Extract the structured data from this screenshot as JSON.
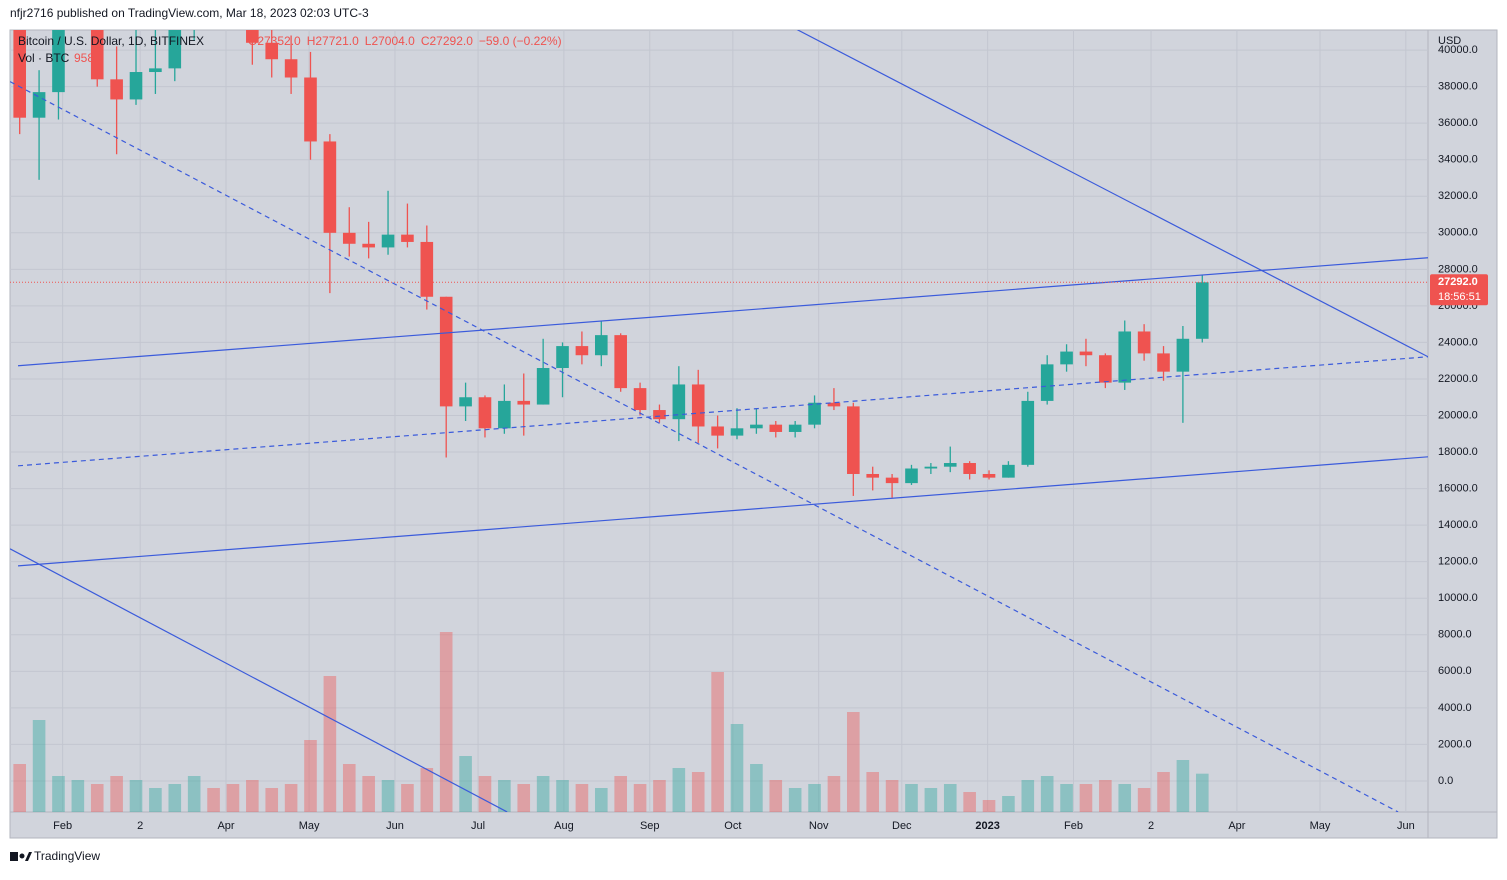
{
  "header": {
    "published": "nfjr2716 published on TradingView.com, Mar 18, 2023 02:03 UTC-3",
    "brand": "TradingView"
  },
  "chart_data": {
    "type": "candlestick",
    "title": "Bitcoin / U.S. Dollar, 1D, BITFINEX",
    "ohlc_header": [
      "O27352.0",
      "H27721.0",
      "L27004.0",
      "C27292.0",
      "−59.0 (−0.22%)"
    ],
    "volume_title": "Vol · BTC",
    "currency": "USD",
    "up_color": "#26a69a",
    "down_color": "#ef5350",
    "x": [
      0,
      7,
      14,
      21,
      28,
      35,
      42,
      49,
      56,
      63,
      70,
      77,
      84,
      91,
      98,
      105,
      112,
      119,
      126,
      133,
      140,
      147,
      154,
      161,
      168,
      175,
      182,
      189,
      196,
      203,
      210,
      217,
      224,
      231,
      238,
      245,
      252,
      259,
      266,
      273,
      280,
      287,
      294,
      301,
      308,
      315,
      322,
      329,
      336,
      343,
      350,
      357,
      364,
      371,
      378,
      385,
      392,
      399,
      406,
      413,
      420,
      427
    ],
    "open": [
      42000,
      36300,
      37700,
      41500,
      42200,
      38400,
      37300,
      38800,
      39000,
      41800,
      46800,
      45900,
      42200,
      40400,
      39500,
      38500,
      35000,
      30000,
      29400,
      29200,
      29900,
      29500,
      26500,
      20500,
      21000,
      19300,
      20800,
      20600,
      22600,
      23800,
      23300,
      24400,
      21500,
      20300,
      19800,
      21700,
      19400,
      18900,
      19300,
      19500,
      19100,
      19500,
      20700,
      20500,
      16800,
      16600,
      16300,
      17100,
      17200,
      17400,
      16800,
      16600,
      17300,
      20800,
      22800,
      23500,
      23300,
      21800,
      24600,
      23400,
      22400,
      24200
    ],
    "high": [
      43500,
      38900,
      41700,
      45800,
      44800,
      40200,
      45000,
      42500,
      42400,
      48200,
      47700,
      46400,
      42500,
      42900,
      40800,
      39900,
      35400,
      31400,
      30600,
      32300,
      31600,
      30400,
      26500,
      21800,
      21100,
      21700,
      22300,
      24200,
      24000,
      24600,
      25200,
      24500,
      21800,
      20600,
      22700,
      22500,
      20000,
      20400,
      20400,
      19700,
      19700,
      21100,
      21500,
      20700,
      17200,
      16800,
      17300,
      17400,
      18300,
      17500,
      17000,
      17500,
      21300,
      23300,
      23900,
      24200,
      23400,
      25200,
      25000,
      23800,
      24900,
      27700
    ],
    "low": [
      35400,
      32900,
      36200,
      41100,
      38000,
      34300,
      37000,
      37600,
      38300,
      40500,
      45200,
      42000,
      39200,
      38500,
      37600,
      34000,
      26700,
      28700,
      28600,
      28800,
      29200,
      25800,
      17700,
      19700,
      18800,
      19000,
      18900,
      20600,
      21000,
      22800,
      22700,
      21300,
      20000,
      19600,
      18600,
      18500,
      18200,
      18700,
      19000,
      18800,
      18800,
      19300,
      20300,
      15600,
      15900,
      15500,
      16200,
      16800,
      16900,
      16500,
      16500,
      16600,
      17200,
      20600,
      22400,
      22700,
      21500,
      21400,
      23000,
      21900,
      19600,
      24000
    ],
    "close": [
      36300,
      37700,
      41500,
      42200,
      38400,
      37300,
      38800,
      39000,
      41800,
      46800,
      45900,
      42200,
      40400,
      39500,
      38500,
      35000,
      30000,
      29400,
      29200,
      29900,
      29500,
      26500,
      20500,
      21000,
      19300,
      20800,
      20600,
      22600,
      23800,
      23300,
      24400,
      21500,
      20300,
      19800,
      21700,
      19400,
      18900,
      19300,
      19500,
      19100,
      19500,
      20700,
      20500,
      16800,
      16600,
      16300,
      17100,
      17200,
      17400,
      16800,
      16600,
      17300,
      20800,
      22800,
      23500,
      23300,
      21800,
      24600,
      23400,
      22400,
      24200,
      27292
    ],
    "volume": [
      1200,
      2300,
      900,
      800,
      700,
      900,
      800,
      600,
      700,
      900,
      600,
      700,
      800,
      600,
      700,
      1800,
      3400,
      1200,
      900,
      800,
      700,
      1100,
      4500,
      1400,
      900,
      800,
      700,
      900,
      800,
      700,
      600,
      900,
      700,
      800,
      1100,
      1000,
      3500,
      2200,
      1200,
      800,
      600,
      700,
      900,
      2500,
      1000,
      800,
      700,
      600,
      700,
      500,
      300,
      400,
      800,
      900,
      700,
      700,
      800,
      700,
      600,
      1000,
      1300,
      958
    ],
    "vlim": [
      0,
      5000
    ],
    "xlim": [
      0,
      512
    ],
    "xticks": [
      {
        "value": 19,
        "label": "Feb"
      },
      {
        "value": 47,
        "label": "2"
      },
      {
        "value": 78,
        "label": "Apr"
      },
      {
        "value": 108,
        "label": "May"
      },
      {
        "value": 139,
        "label": "Jun"
      },
      {
        "value": 169,
        "label": "Jul"
      },
      {
        "value": 200,
        "label": "Aug"
      },
      {
        "value": 231,
        "label": "Sep"
      },
      {
        "value": 261,
        "label": "Oct"
      },
      {
        "value": 292,
        "label": "Nov"
      },
      {
        "value": 322,
        "label": "Dec"
      },
      {
        "value": 353,
        "label": "2023"
      },
      {
        "value": 384,
        "label": "Feb"
      },
      {
        "value": 412,
        "label": "2"
      },
      {
        "value": 443,
        "label": "Apr"
      },
      {
        "value": 473,
        "label": "May"
      },
      {
        "value": 504,
        "label": "Jun"
      }
    ],
    "ylim": [
      -1700,
      41100
    ],
    "yticks": [
      {
        "value": 0,
        "label": "0.0"
      },
      {
        "value": 2000,
        "label": "2000.0"
      },
      {
        "value": 4000,
        "label": "4000.0"
      },
      {
        "value": 6000,
        "label": "6000.0"
      },
      {
        "value": 8000,
        "label": "8000.0"
      },
      {
        "value": 10000,
        "label": "10000.0"
      },
      {
        "value": 12000,
        "label": "12000.0"
      },
      {
        "value": 14000,
        "label": "14000.0"
      },
      {
        "value": 16000,
        "label": "16000.0"
      },
      {
        "value": 18000,
        "label": "18000.0"
      },
      {
        "value": 20000,
        "label": "20000.0"
      },
      {
        "value": 22000,
        "label": "22000.0"
      },
      {
        "value": 24000,
        "label": "24000.0"
      },
      {
        "value": 26000,
        "label": "26000.0"
      },
      {
        "value": 28000,
        "label": "28000.0"
      },
      {
        "value": 30000,
        "label": "30000.0"
      },
      {
        "value": 32000,
        "label": "32000.0"
      },
      {
        "value": 34000,
        "label": "34000.0"
      },
      {
        "value": 36000,
        "label": "36000.0"
      },
      {
        "value": 38000,
        "label": "38000.0"
      },
      {
        "value": 40000,
        "label": "40000.0"
      }
    ],
    "grid": true,
    "last_price": {
      "value": 27292,
      "label": "27292.0"
    },
    "countdown": "18:56:51",
    "drawing_color": "#3b5bdb",
    "drawings": [
      {
        "x": [
          284.2,
          512
        ],
        "y": [
          41121,
          23216
        ],
        "dashed": false
      },
      {
        "x": [
          2.9,
          512
        ],
        "y": [
          22724,
          28637
        ],
        "dashed": false
      },
      {
        "x": [
          2.9,
          512
        ],
        "y": [
          17248,
          23216
        ],
        "dashed": true
      },
      {
        "x": [
          2.9,
          512
        ],
        "y": [
          11772,
          17741
        ],
        "dashed": false
      },
      {
        "x": [
          0,
          501.2
        ],
        "y": [
          38274,
          -1697
        ],
        "dashed": true
      },
      {
        "x": [
          0,
          179.5
        ],
        "y": [
          12703,
          -1697
        ],
        "dashed": false
      }
    ]
  }
}
